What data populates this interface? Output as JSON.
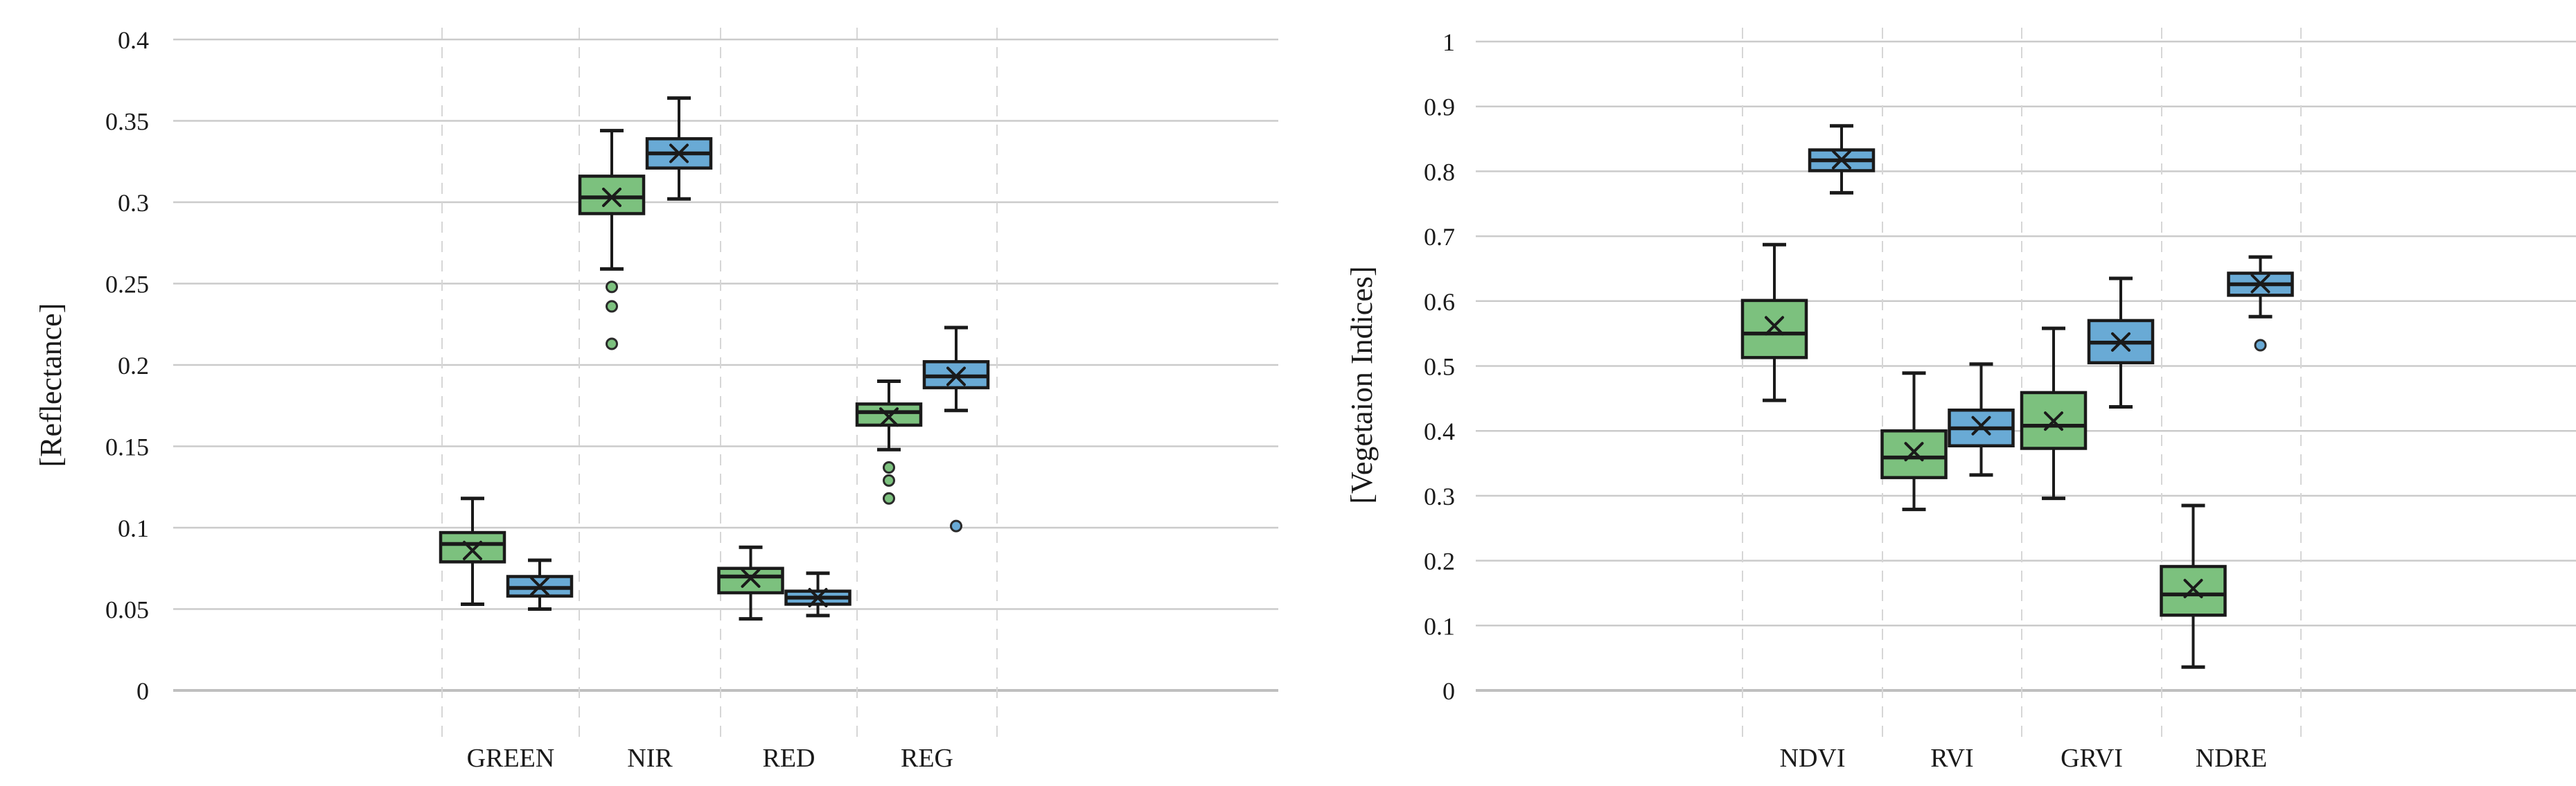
{
  "figure": {
    "background": "#ffffff",
    "series_colors": {
      "green": "#7CC17E",
      "blue": "#69AAD5"
    },
    "box_stroke_color": "#1a1a1a"
  },
  "chart_data": [
    {
      "type": "box",
      "id": "reflectance",
      "ylabel": "[Reflectance]",
      "xlabel": "",
      "ylim": [
        0,
        0.4
      ],
      "grid": "horizontal-major, vertical-dashed-category-separators",
      "legend_position": "none",
      "y_ticks": [
        {
          "v": 0,
          "label": "0"
        },
        {
          "v": 0.05,
          "label": "0.05"
        },
        {
          "v": 0.1,
          "label": "0.1"
        },
        {
          "v": 0.15,
          "label": "0.15"
        },
        {
          "v": 0.2,
          "label": "0.2"
        },
        {
          "v": 0.25,
          "label": "0.25"
        },
        {
          "v": 0.3,
          "label": "0.3"
        },
        {
          "v": 0.35,
          "label": "0.35"
        },
        {
          "v": 0.4,
          "label": "0.4"
        }
      ],
      "categories": [
        "GREEN",
        "NIR",
        "RED",
        "REG"
      ],
      "series": [
        {
          "name": "green",
          "color": "#7CC17E",
          "boxes": [
            {
              "whisker_low": 0.053,
              "q1": 0.079,
              "median": 0.09,
              "q3": 0.097,
              "whisker_high": 0.118,
              "mean": 0.086,
              "outliers": []
            },
            {
              "whisker_low": 0.259,
              "q1": 0.293,
              "median": 0.303,
              "q3": 0.316,
              "whisker_high": 0.344,
              "mean": 0.303,
              "outliers": [
                0.248,
                0.236,
                0.213
              ]
            },
            {
              "whisker_low": 0.044,
              "q1": 0.06,
              "median": 0.07,
              "q3": 0.075,
              "whisker_high": 0.088,
              "mean": 0.069,
              "outliers": []
            },
            {
              "whisker_low": 0.148,
              "q1": 0.163,
              "median": 0.171,
              "q3": 0.176,
              "whisker_high": 0.19,
              "mean": 0.168,
              "outliers": [
                0.137,
                0.129,
                0.118
              ]
            }
          ]
        },
        {
          "name": "blue",
          "color": "#69AAD5",
          "boxes": [
            {
              "whisker_low": 0.05,
              "q1": 0.058,
              "median": 0.063,
              "q3": 0.07,
              "whisker_high": 0.08,
              "mean": 0.064,
              "outliers": []
            },
            {
              "whisker_low": 0.302,
              "q1": 0.321,
              "median": 0.33,
              "q3": 0.339,
              "whisker_high": 0.364,
              "mean": 0.33,
              "outliers": []
            },
            {
              "whisker_low": 0.046,
              "q1": 0.053,
              "median": 0.057,
              "q3": 0.061,
              "whisker_high": 0.072,
              "mean": 0.057,
              "outliers": []
            },
            {
              "whisker_low": 0.172,
              "q1": 0.186,
              "median": 0.193,
              "q3": 0.202,
              "whisker_high": 0.223,
              "mean": 0.193,
              "outliers": [
                0.101
              ]
            }
          ]
        }
      ]
    },
    {
      "type": "box",
      "id": "vegetation-indices",
      "ylabel": "[Vegetaion Indices]",
      "xlabel": "",
      "ylim": [
        0,
        1
      ],
      "grid": "horizontal-major, vertical-dashed-category-separators",
      "legend_position": "none",
      "y_ticks": [
        {
          "v": 0,
          "label": "0"
        },
        {
          "v": 0.1,
          "label": "0.1"
        },
        {
          "v": 0.2,
          "label": "0.2"
        },
        {
          "v": 0.3,
          "label": "0.3"
        },
        {
          "v": 0.4,
          "label": "0.4"
        },
        {
          "v": 0.5,
          "label": "0.5"
        },
        {
          "v": 0.6,
          "label": "0.6"
        },
        {
          "v": 0.7,
          "label": "0.7"
        },
        {
          "v": 0.8,
          "label": "0.8"
        },
        {
          "v": 0.9,
          "label": "0.9"
        },
        {
          "v": 1,
          "label": "1"
        }
      ],
      "categories": [
        "NDVI",
        "RVI",
        "GRVI",
        "NDRE"
      ],
      "series": [
        {
          "name": "green",
          "color": "#7CC17E",
          "boxes": [
            {
              "whisker_low": 0.447,
              "q1": 0.513,
              "median": 0.55,
              "q3": 0.601,
              "whisker_high": 0.687,
              "mean": 0.562,
              "outliers": []
            },
            {
              "whisker_low": 0.279,
              "q1": 0.328,
              "median": 0.359,
              "q3": 0.4,
              "whisker_high": 0.489,
              "mean": 0.368,
              "outliers": []
            },
            {
              "whisker_low": 0.296,
              "q1": 0.373,
              "median": 0.408,
              "q3": 0.459,
              "whisker_high": 0.558,
              "mean": 0.415,
              "outliers": []
            },
            {
              "whisker_low": 0.036,
              "q1": 0.116,
              "median": 0.148,
              "q3": 0.191,
              "whisker_high": 0.285,
              "mean": 0.157,
              "outliers": []
            }
          ]
        },
        {
          "name": "blue",
          "color": "#69AAD5",
          "boxes": [
            {
              "whisker_low": 0.767,
              "q1": 0.801,
              "median": 0.817,
              "q3": 0.833,
              "whisker_high": 0.87,
              "mean": 0.818,
              "outliers": []
            },
            {
              "whisker_low": 0.332,
              "q1": 0.377,
              "median": 0.404,
              "q3": 0.432,
              "whisker_high": 0.503,
              "mean": 0.408,
              "outliers": []
            },
            {
              "whisker_low": 0.437,
              "q1": 0.505,
              "median": 0.536,
              "q3": 0.57,
              "whisker_high": 0.635,
              "mean": 0.537,
              "outliers": []
            },
            {
              "whisker_low": 0.576,
              "q1": 0.609,
              "median": 0.626,
              "q3": 0.643,
              "whisker_high": 0.668,
              "mean": 0.627,
              "outliers": [
                0.532
              ]
            }
          ]
        }
      ]
    }
  ]
}
